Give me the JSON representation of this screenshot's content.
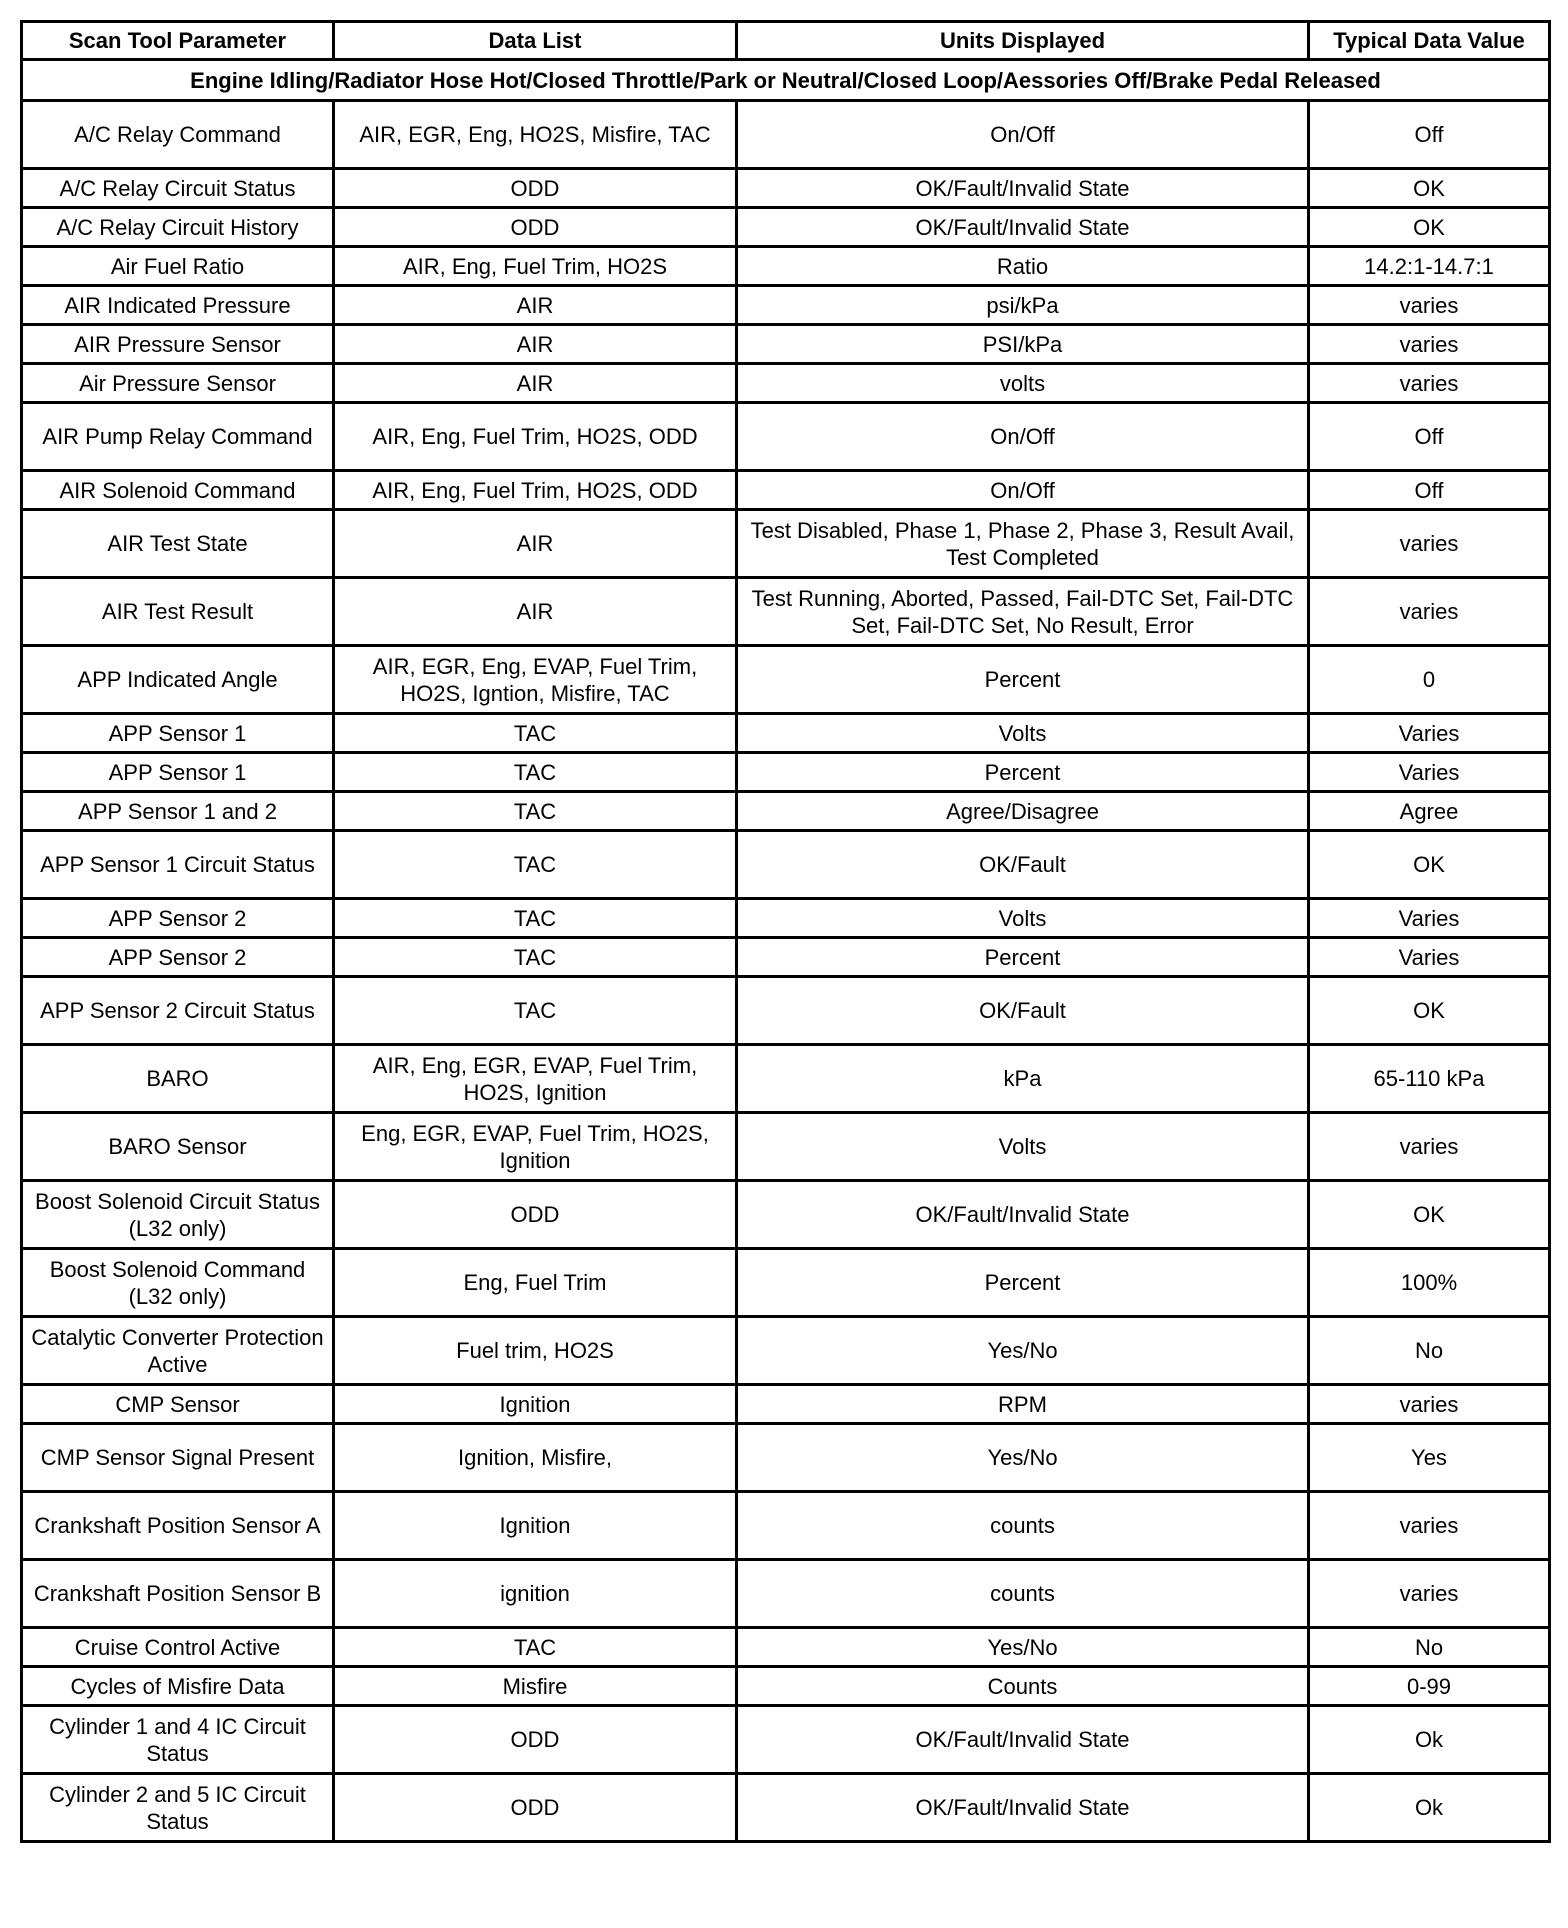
{
  "headers": [
    "Scan Tool Parameter",
    "Data List",
    "Units Displayed",
    "Typical Data Value"
  ],
  "condition": "Engine Idling/Radiator Hose Hot/Closed Throttle/Park or Neutral/Closed Loop/Aessories Off/Brake Pedal Released",
  "rows": [
    [
      "A/C Relay Command",
      "AIR, EGR, Eng, HO2S, Misfire, TAC",
      "On/Off",
      "Off"
    ],
    [
      "A/C Relay Circuit Status",
      "ODD",
      "OK/Fault/Invalid State",
      "OK"
    ],
    [
      "A/C Relay Circuit History",
      "ODD",
      "OK/Fault/Invalid State",
      "OK"
    ],
    [
      "Air Fuel Ratio",
      "AIR, Eng, Fuel Trim, HO2S",
      "Ratio",
      "14.2:1-14.7:1"
    ],
    [
      "AIR Indicated Pressure",
      "AIR",
      "psi/kPa",
      "varies"
    ],
    [
      "AIR Pressure Sensor",
      "AIR",
      "PSI/kPa",
      "varies"
    ],
    [
      "Air Pressure Sensor",
      "AIR",
      "volts",
      "varies"
    ],
    [
      "AIR Pump Relay Command",
      "AIR, Eng, Fuel Trim, HO2S, ODD",
      "On/Off",
      "Off"
    ],
    [
      "AIR Solenoid Command",
      "AIR, Eng, Fuel Trim, HO2S, ODD",
      "On/Off",
      "Off"
    ],
    [
      "AIR Test State",
      "AIR",
      "Test Disabled, Phase 1, Phase 2, Phase 3, Result Avail, Test Completed",
      "varies"
    ],
    [
      "AIR Test Result",
      "AIR",
      "Test Running, Aborted, Passed, Fail-DTC Set, Fail-DTC Set, Fail-DTC Set, No Result, Error",
      "varies"
    ],
    [
      "APP Indicated Angle",
      "AIR, EGR, Eng, EVAP, Fuel Trim, HO2S, Igntion, Misfire, TAC",
      "Percent",
      "0"
    ],
    [
      "APP Sensor 1",
      "TAC",
      "Volts",
      "Varies"
    ],
    [
      "APP Sensor 1",
      "TAC",
      "Percent",
      "Varies"
    ],
    [
      "APP Sensor 1 and 2",
      "TAC",
      "Agree/Disagree",
      "Agree"
    ],
    [
      "APP Sensor 1 Circuit Status",
      "TAC",
      "OK/Fault",
      "OK"
    ],
    [
      "APP Sensor 2",
      "TAC",
      "Volts",
      "Varies"
    ],
    [
      "APP Sensor 2",
      "TAC",
      "Percent",
      "Varies"
    ],
    [
      "APP Sensor 2 Circuit Status",
      "TAC",
      "OK/Fault",
      "OK"
    ],
    [
      "BARO",
      "AIR, Eng, EGR, EVAP, Fuel Trim, HO2S, Ignition",
      "kPa",
      "65-110 kPa"
    ],
    [
      "BARO Sensor",
      "Eng, EGR, EVAP, Fuel Trim, HO2S, Ignition",
      "Volts",
      "varies"
    ],
    [
      "Boost Solenoid Circuit Status (L32 only)",
      "ODD",
      "OK/Fault/Invalid State",
      "OK"
    ],
    [
      "Boost Solenoid Command (L32 only)",
      "Eng, Fuel Trim",
      "Percent",
      "100%"
    ],
    [
      "Catalytic Converter Protection Active",
      "Fuel trim, HO2S",
      "Yes/No",
      "No"
    ],
    [
      "CMP Sensor",
      "Ignition",
      "RPM",
      "varies"
    ],
    [
      "CMP Sensor Signal Present",
      "Ignition, Misfire,",
      "Yes/No",
      "Yes"
    ],
    [
      "Crankshaft Position Sensor A",
      "Ignition",
      "counts",
      "varies"
    ],
    [
      "Crankshaft Position Sensor B",
      "ignition",
      "counts",
      "varies"
    ],
    [
      "Cruise Control Active",
      "TAC",
      "Yes/No",
      "No"
    ],
    [
      "Cycles of Misfire Data",
      "Misfire",
      "Counts",
      "0-99"
    ],
    [
      "Cylinder 1 and 4 IC Circuit Status",
      "ODD",
      "OK/Fault/Invalid State",
      "Ok"
    ],
    [
      "Cylinder 2 and 5 IC Circuit Status",
      "ODD",
      "OK/Fault/Invalid State",
      "Ok"
    ]
  ]
}
